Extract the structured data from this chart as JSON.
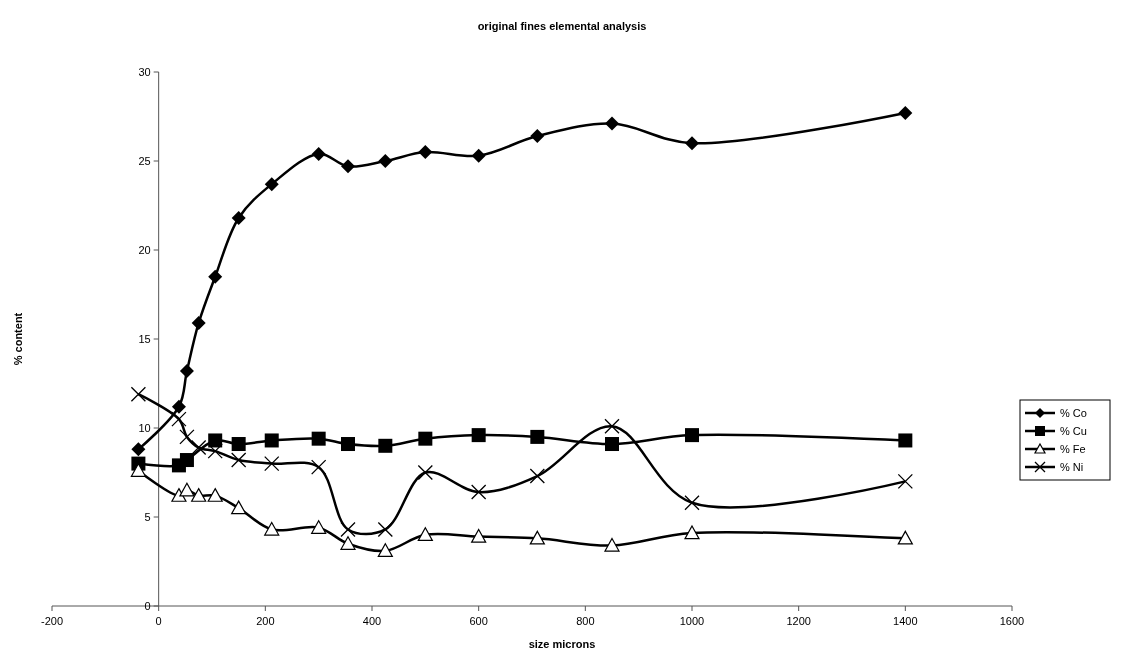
{
  "chart_data": {
    "type": "line",
    "title": "original fines elemental analysis",
    "xlabel": "size microns",
    "ylabel": "% content",
    "x": [
      -38,
      38,
      53,
      75,
      106,
      150,
      212,
      300,
      355,
      425,
      500,
      600,
      710,
      850,
      1000,
      1400
    ],
    "xlim": [
      -200,
      1600
    ],
    "xticks": [
      -200,
      0,
      200,
      400,
      600,
      800,
      1000,
      1200,
      1400,
      1600
    ],
    "ylim": [
      0,
      30
    ],
    "yticks": [
      0,
      5,
      10,
      15,
      20,
      25,
      30
    ],
    "grid": false,
    "legend": "right",
    "line_style": "solid",
    "series": [
      {
        "name": "% Co",
        "color": "#000000",
        "marker": "diamond",
        "values": [
          8.8,
          11.2,
          13.2,
          15.9,
          18.5,
          21.8,
          23.7,
          25.4,
          24.7,
          25.0,
          25.5,
          25.3,
          26.4,
          27.1,
          26.0,
          27.7
        ]
      },
      {
        "name": "% Cu",
        "color": "#000000",
        "marker": "square",
        "x": [
          -38,
          38,
          53,
          106,
          150,
          212,
          300,
          355,
          425,
          500,
          600,
          710,
          850,
          1000,
          1400
        ],
        "values": [
          8.0,
          7.9,
          8.2,
          9.3,
          9.1,
          9.3,
          9.4,
          9.1,
          9.0,
          9.4,
          9.6,
          9.5,
          9.1,
          9.6,
          9.3
        ]
      },
      {
        "name": "% Fe",
        "color": "#000000",
        "marker": "triangle",
        "values": [
          7.6,
          6.2,
          6.5,
          6.2,
          6.2,
          5.5,
          4.3,
          4.4,
          3.5,
          3.1,
          4.0,
          3.9,
          3.8,
          3.4,
          4.1,
          3.8
        ]
      },
      {
        "name": "% Ni",
        "color": "#000000",
        "marker": "cross",
        "values": [
          11.9,
          10.5,
          9.5,
          8.9,
          8.7,
          8.2,
          8.0,
          7.8,
          4.3,
          4.3,
          7.5,
          6.4,
          7.3,
          10.1,
          5.8,
          7.0
        ]
      }
    ]
  }
}
